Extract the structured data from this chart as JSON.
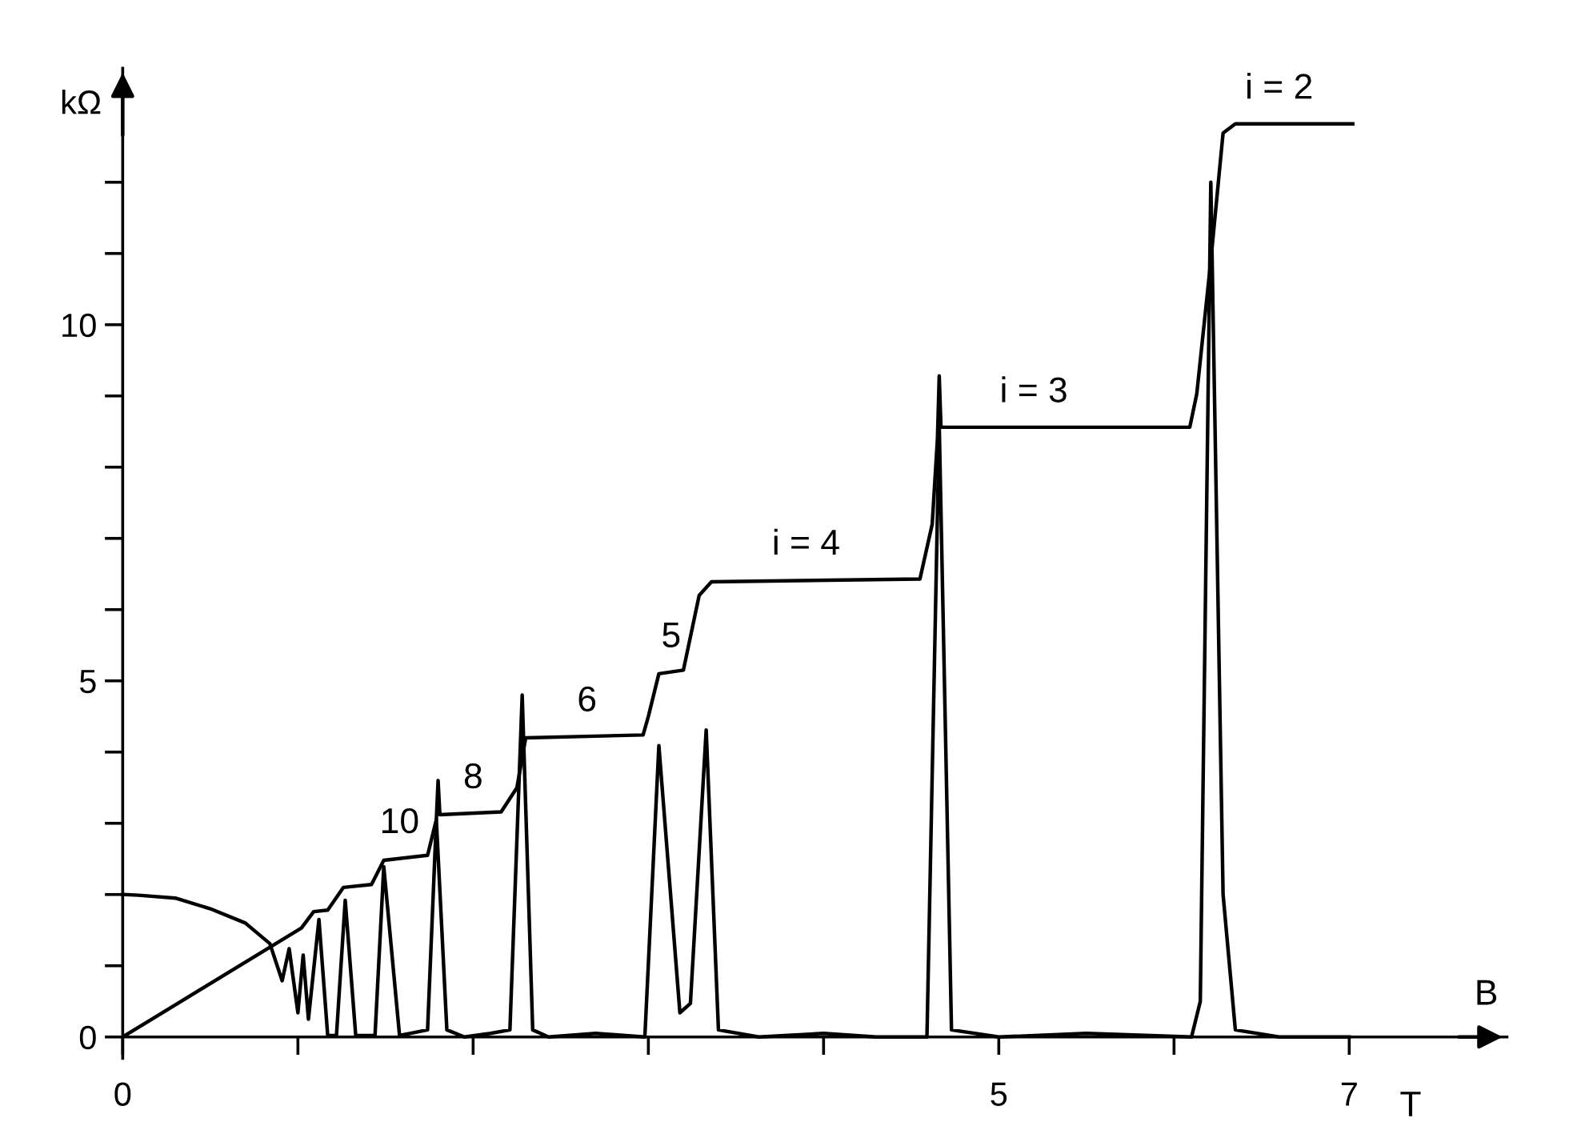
{
  "chart_data": {
    "type": "line",
    "xlabel": "B",
    "ylabel": "kΩ",
    "xlim": [
      0,
      7.9
    ],
    "ylim": [
      -0.3,
      13.6
    ],
    "xticks": [
      0,
      {
        "value": 1,
        "label": null
      },
      {
        "value": 2,
        "label": null
      },
      {
        "value": 3,
        "label": null
      },
      {
        "value": 4,
        "label": null
      },
      5,
      {
        "value": 6,
        "label": null
      },
      7
    ],
    "yticks": [
      0,
      {
        "value": 1,
        "label": null
      },
      {
        "value": 2,
        "label": null
      },
      {
        "value": 3,
        "label": null
      },
      {
        "value": 4,
        "label": null
      },
      5,
      {
        "value": 6,
        "label": null
      },
      {
        "value": 7,
        "label": null
      },
      {
        "value": 8,
        "label": null
      },
      {
        "value": 9,
        "label": null
      },
      10,
      {
        "value": 11,
        "label": null
      },
      {
        "value": 12,
        "label": null
      }
    ],
    "grid": false,
    "legend": false,
    "marker": "none",
    "line_style": "solid",
    "series": [
      {
        "color": "#000000",
        "x": [
          0,
          1.02,
          1.09,
          1.17,
          1.26,
          1.42,
          1.49,
          1.74,
          1.79,
          1.8,
          1.81,
          2.16,
          2.25,
          2.3,
          2.97,
          3.0,
          3.06,
          3.2,
          3.29,
          3.36,
          4.55,
          4.62,
          4.65,
          4.66,
          4.67,
          4.69,
          6.09,
          6.13,
          6.21,
          6.28,
          6.35,
          7.02
        ],
        "values": [
          0,
          1.53,
          1.76,
          1.78,
          2.1,
          2.14,
          2.48,
          2.55,
          3.05,
          3.6,
          3.12,
          3.16,
          3.5,
          4.2,
          4.24,
          4.5,
          5.1,
          5.15,
          6.2,
          6.39,
          6.43,
          7.2,
          8.4,
          9.28,
          8.56,
          8.56,
          8.56,
          9.03,
          10.9,
          12.69,
          12.82,
          12.82
        ]
      },
      {
        "color": "#000000",
        "x": [
          0.0,
          0.09,
          0.3,
          0.5,
          0.7,
          0.84,
          0.91,
          0.95,
          1.0,
          1.03,
          1.06,
          1.12,
          1.17,
          1.22,
          1.27,
          1.33,
          1.44,
          1.49,
          1.58,
          1.74,
          1.79,
          1.85,
          1.95,
          2.1,
          2.21,
          2.28,
          2.34,
          2.43,
          2.7,
          2.98,
          3.06,
          3.18,
          3.24,
          3.33,
          3.4,
          3.63,
          4.0,
          4.3,
          4.59,
          4.66,
          4.73,
          5.0,
          5.5,
          6.1,
          6.15,
          6.21,
          6.28,
          6.35,
          6.6,
          7.0
        ],
        "values": [
          2.0,
          1.99,
          1.95,
          1.8,
          1.6,
          1.31,
          0.79,
          1.24,
          0.34,
          1.15,
          0.25,
          1.65,
          0.02,
          0.02,
          1.92,
          0.02,
          0.02,
          2.39,
          0.02,
          0.1,
          3.05,
          0.1,
          0.0,
          0.05,
          0.1,
          4.8,
          0.1,
          0.0,
          0.05,
          0.0,
          4.09,
          0.34,
          0.47,
          4.31,
          0.1,
          0.0,
          0.05,
          0.0,
          0.0,
          8.6,
          0.1,
          0.0,
          0.05,
          0.0,
          0.5,
          12.0,
          2.0,
          0.1,
          0.0,
          0.0
        ]
      }
    ],
    "annotations": [
      {
        "text": "i = 2",
        "x": 6.6,
        "y": 12.82
      },
      {
        "text": "i = 3",
        "x": 5.2,
        "y": 8.56
      },
      {
        "text": "i = 4",
        "x": 3.9,
        "y": 6.42
      },
      {
        "text": "5",
        "x": 3.13,
        "y": 5.12
      },
      {
        "text": "6",
        "x": 2.65,
        "y": 4.22
      },
      {
        "text": "8",
        "x": 2.0,
        "y": 3.14
      },
      {
        "text": "10",
        "x": 1.58,
        "y": 2.51
      },
      "T"
    ]
  }
}
